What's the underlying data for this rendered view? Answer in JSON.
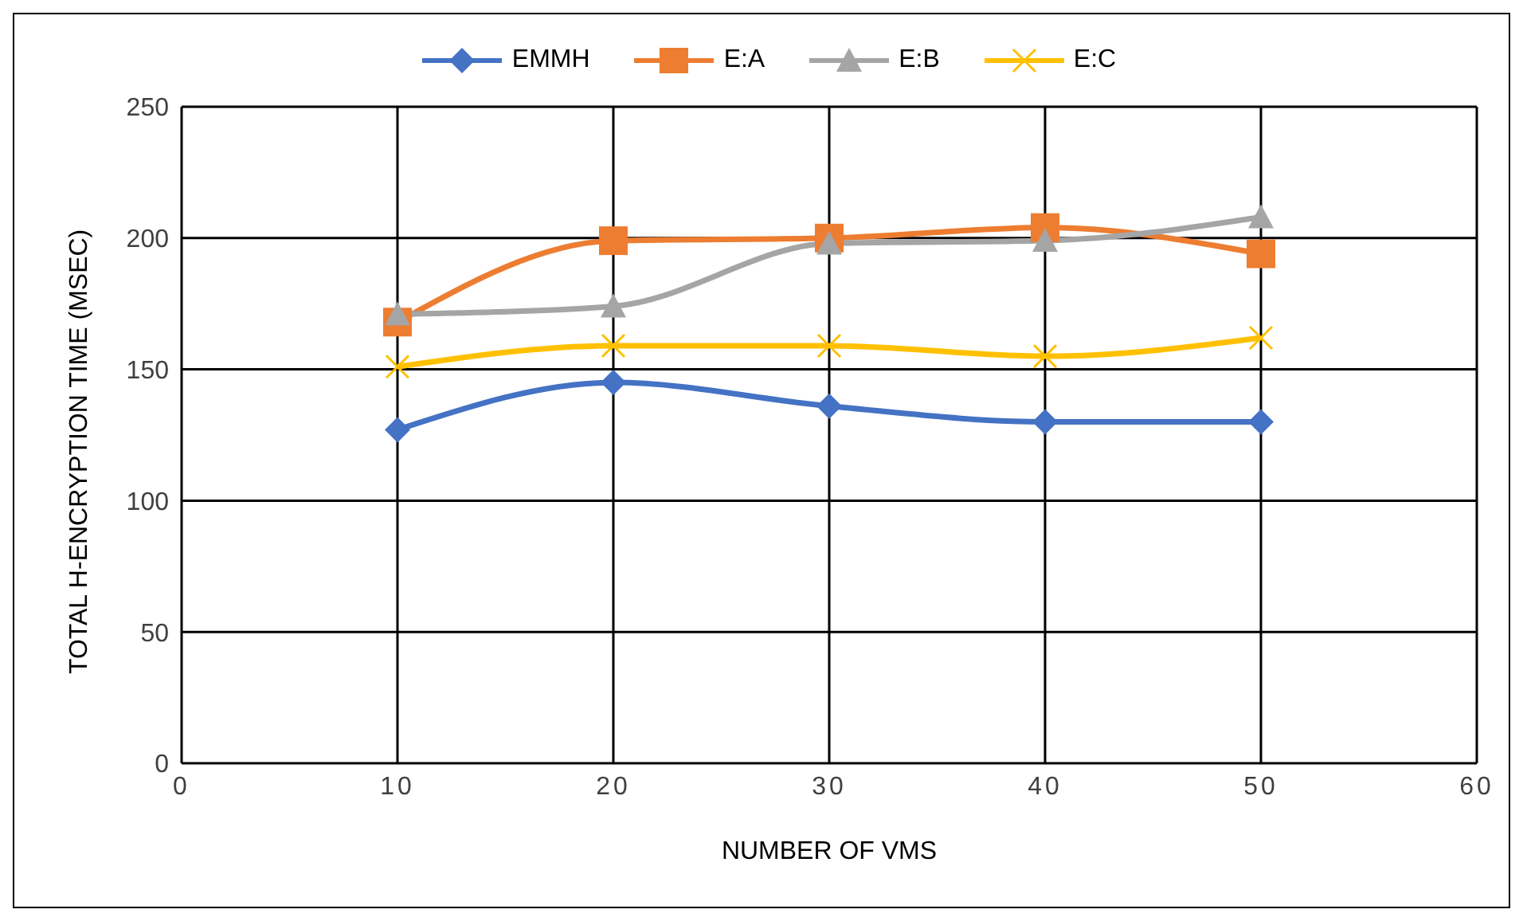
{
  "chart_data": {
    "type": "line",
    "xlabel": "NUMBER OF VMS",
    "ylabel": "TOTAL H-ENCRYPTION TIME (MSEC)",
    "x": [
      10,
      20,
      30,
      40,
      50
    ],
    "xlim": [
      0,
      60
    ],
    "xticks": [
      0,
      10,
      20,
      30,
      40,
      50,
      60
    ],
    "ylim": [
      0,
      250
    ],
    "yticks": [
      0,
      50,
      100,
      150,
      200,
      250
    ],
    "grid": true,
    "legend": "top",
    "line_style": "solid",
    "series": [
      {
        "name": "EMMH",
        "color": "#4472c4",
        "marker": "diamond",
        "values": [
          127,
          145,
          136,
          130,
          130
        ]
      },
      {
        "name": "E:A",
        "color": "#ed7d31",
        "marker": "square",
        "values": [
          168,
          199,
          200,
          204,
          194
        ]
      },
      {
        "name": "E:B",
        "color": "#a5a5a5",
        "marker": "triangle",
        "values": [
          171,
          174,
          198,
          199,
          208
        ]
      },
      {
        "name": "E:C",
        "color": "#ffc000",
        "marker": "cross",
        "values": [
          151,
          159,
          159,
          155,
          162
        ]
      }
    ]
  }
}
